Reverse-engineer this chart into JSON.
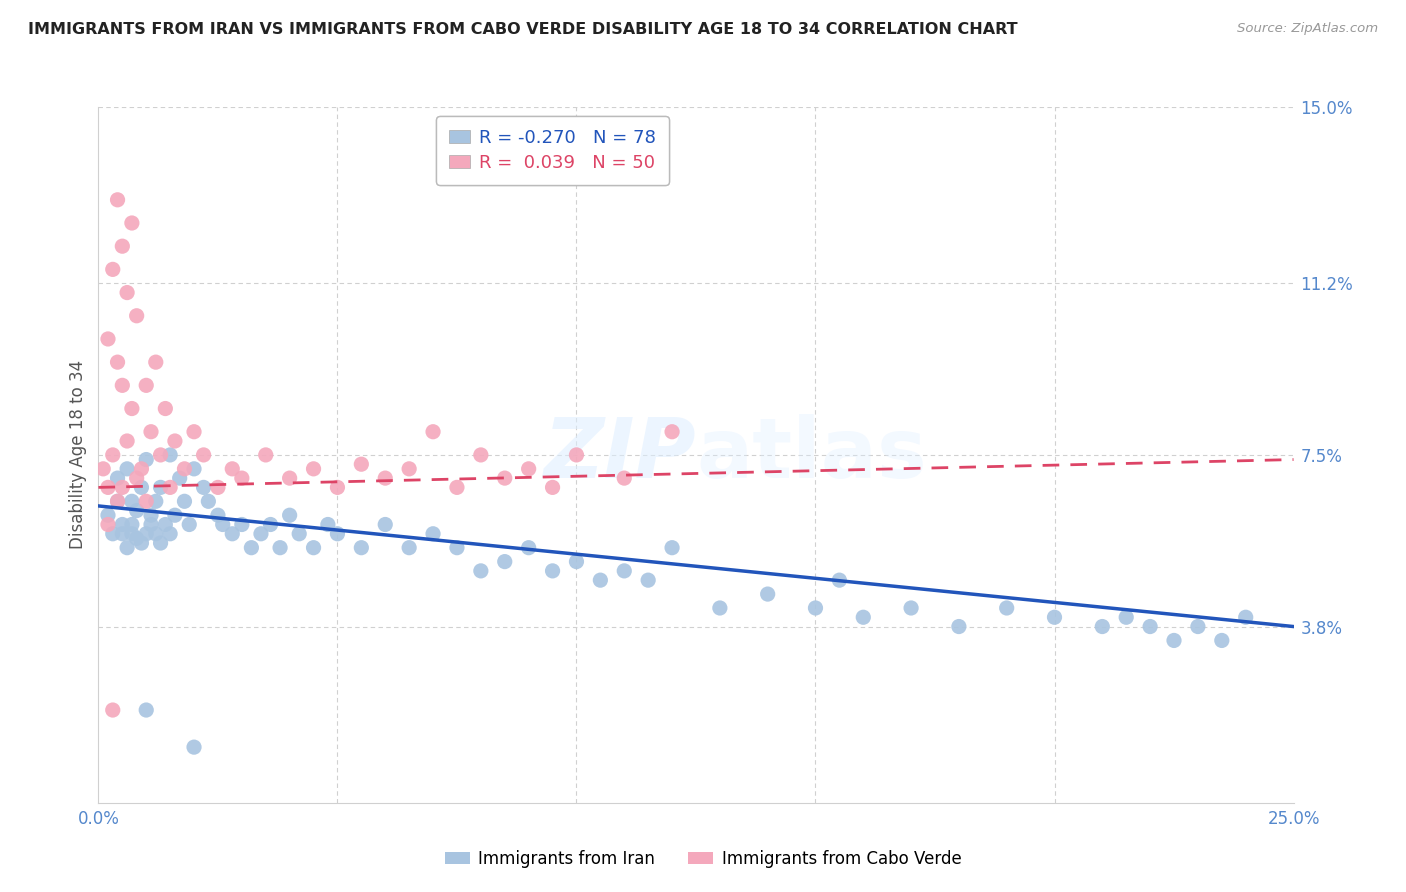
{
  "title": "IMMIGRANTS FROM IRAN VS IMMIGRANTS FROM CABO VERDE DISABILITY AGE 18 TO 34 CORRELATION CHART",
  "source": "Source: ZipAtlas.com",
  "ylabel_label": "Disability Age 18 to 34",
  "xlim": [
    0.0,
    0.25
  ],
  "ylim": [
    0.0,
    0.15
  ],
  "iran_R": -0.27,
  "iran_N": 78,
  "cabo_R": 0.039,
  "cabo_N": 50,
  "iran_color": "#a8c4e0",
  "cabo_color": "#f4a8bc",
  "iran_line_color": "#2255bb",
  "cabo_line_color": "#dd4466",
  "watermark": "ZIPatlas",
  "background_color": "#ffffff",
  "grid_color": "#d0d0d0",
  "iran_line_x0": 0.0,
  "iran_line_x1": 0.25,
  "iran_line_y0": 0.064,
  "iran_line_y1": 0.038,
  "cabo_line_x0": 0.0,
  "cabo_line_x1": 0.25,
  "cabo_line_y0": 0.068,
  "cabo_line_y1": 0.074,
  "iran_x": [
    0.002,
    0.003,
    0.004,
    0.004,
    0.005,
    0.005,
    0.006,
    0.006,
    0.007,
    0.007,
    0.007,
    0.008,
    0.008,
    0.009,
    0.009,
    0.01,
    0.01,
    0.011,
    0.011,
    0.012,
    0.012,
    0.013,
    0.013,
    0.014,
    0.015,
    0.015,
    0.016,
    0.017,
    0.018,
    0.019,
    0.02,
    0.022,
    0.023,
    0.025,
    0.026,
    0.028,
    0.03,
    0.032,
    0.034,
    0.036,
    0.038,
    0.04,
    0.042,
    0.045,
    0.048,
    0.05,
    0.055,
    0.06,
    0.065,
    0.07,
    0.075,
    0.08,
    0.085,
    0.09,
    0.095,
    0.1,
    0.105,
    0.11,
    0.115,
    0.12,
    0.13,
    0.14,
    0.15,
    0.155,
    0.16,
    0.17,
    0.18,
    0.19,
    0.2,
    0.21,
    0.215,
    0.22,
    0.225,
    0.23,
    0.235,
    0.24,
    0.01,
    0.02
  ],
  "iran_y": [
    0.062,
    0.058,
    0.07,
    0.065,
    0.06,
    0.058,
    0.072,
    0.055,
    0.065,
    0.06,
    0.058,
    0.063,
    0.057,
    0.068,
    0.056,
    0.074,
    0.058,
    0.062,
    0.06,
    0.065,
    0.058,
    0.068,
    0.056,
    0.06,
    0.075,
    0.058,
    0.062,
    0.07,
    0.065,
    0.06,
    0.072,
    0.068,
    0.065,
    0.062,
    0.06,
    0.058,
    0.06,
    0.055,
    0.058,
    0.06,
    0.055,
    0.062,
    0.058,
    0.055,
    0.06,
    0.058,
    0.055,
    0.06,
    0.055,
    0.058,
    0.055,
    0.05,
    0.052,
    0.055,
    0.05,
    0.052,
    0.048,
    0.05,
    0.048,
    0.055,
    0.042,
    0.045,
    0.042,
    0.048,
    0.04,
    0.042,
    0.038,
    0.042,
    0.04,
    0.038,
    0.04,
    0.038,
    0.035,
    0.038,
    0.035,
    0.04,
    0.02,
    0.012
  ],
  "cabo_x": [
    0.001,
    0.002,
    0.002,
    0.003,
    0.003,
    0.004,
    0.004,
    0.005,
    0.005,
    0.006,
    0.006,
    0.007,
    0.007,
    0.008,
    0.008,
    0.009,
    0.01,
    0.01,
    0.011,
    0.012,
    0.013,
    0.014,
    0.015,
    0.016,
    0.018,
    0.02,
    0.022,
    0.025,
    0.028,
    0.03,
    0.035,
    0.04,
    0.045,
    0.05,
    0.055,
    0.06,
    0.065,
    0.07,
    0.075,
    0.08,
    0.085,
    0.09,
    0.095,
    0.1,
    0.11,
    0.12,
    0.002,
    0.004,
    0.003,
    0.005
  ],
  "cabo_y": [
    0.072,
    0.068,
    0.1,
    0.115,
    0.075,
    0.13,
    0.095,
    0.068,
    0.12,
    0.11,
    0.078,
    0.125,
    0.085,
    0.105,
    0.07,
    0.072,
    0.065,
    0.09,
    0.08,
    0.095,
    0.075,
    0.085,
    0.068,
    0.078,
    0.072,
    0.08,
    0.075,
    0.068,
    0.072,
    0.07,
    0.075,
    0.07,
    0.072,
    0.068,
    0.073,
    0.07,
    0.072,
    0.08,
    0.068,
    0.075,
    0.07,
    0.072,
    0.068,
    0.075,
    0.07,
    0.08,
    0.06,
    0.065,
    0.02,
    0.09
  ]
}
